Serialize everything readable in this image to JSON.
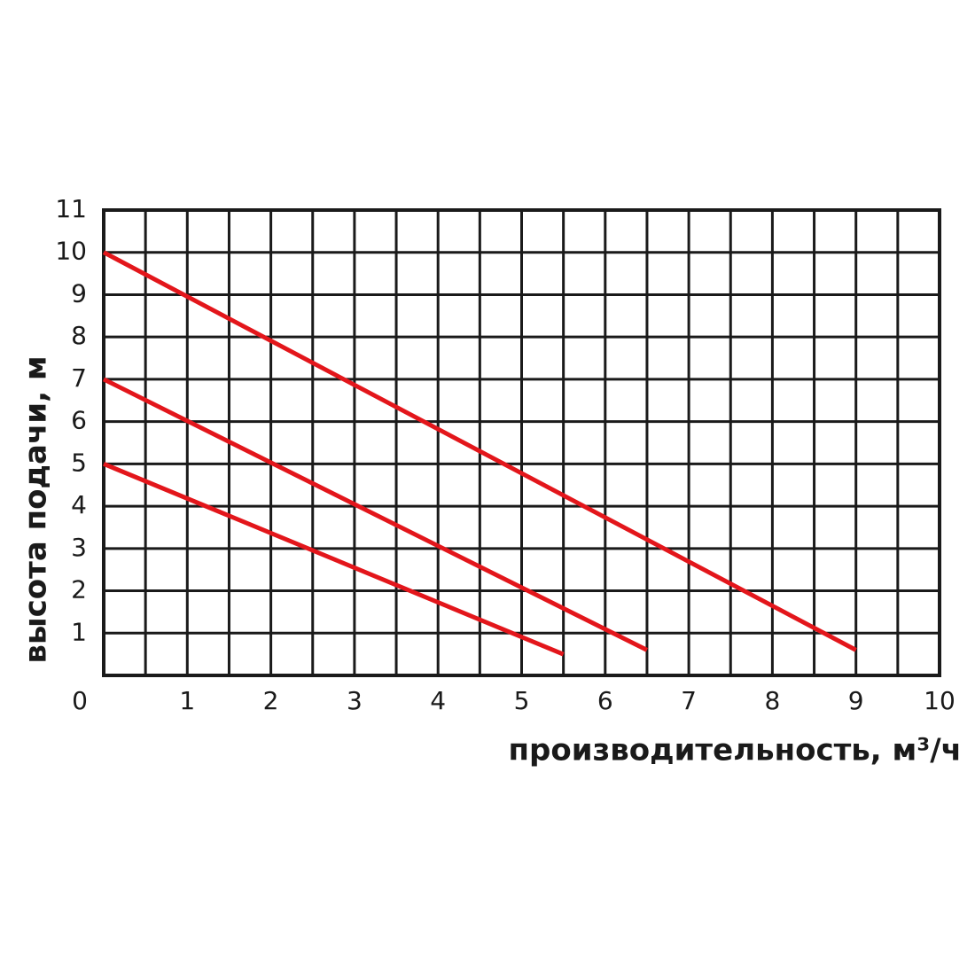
{
  "chart_data": {
    "type": "line",
    "x_label": "производительность, м³/ч",
    "y_label": "высота подачи, м",
    "series": [
      {
        "color": "#e3161b",
        "x": [
          0,
          9
        ],
        "values": [
          10,
          0.6
        ]
      },
      {
        "color": "#e3161b",
        "x": [
          0,
          6.5
        ],
        "values": [
          7,
          0.6
        ]
      },
      {
        "color": "#e3161b",
        "x": [
          0,
          5.5
        ],
        "values": [
          5,
          0.5
        ]
      }
    ],
    "xlim": [
      0,
      10
    ],
    "ylim": [
      0,
      11
    ],
    "xticks": [
      0,
      1,
      2,
      3,
      4,
      5,
      6,
      7,
      8,
      9,
      10
    ],
    "x_minor_grid": [
      0.5,
      1.5,
      2.5,
      3.5,
      4.5,
      5.5,
      6.5,
      7.5,
      8.5,
      9.5
    ],
    "yticks": [
      1,
      2,
      3,
      4,
      5,
      6,
      7,
      8,
      9,
      10,
      11
    ],
    "grid": true
  }
}
